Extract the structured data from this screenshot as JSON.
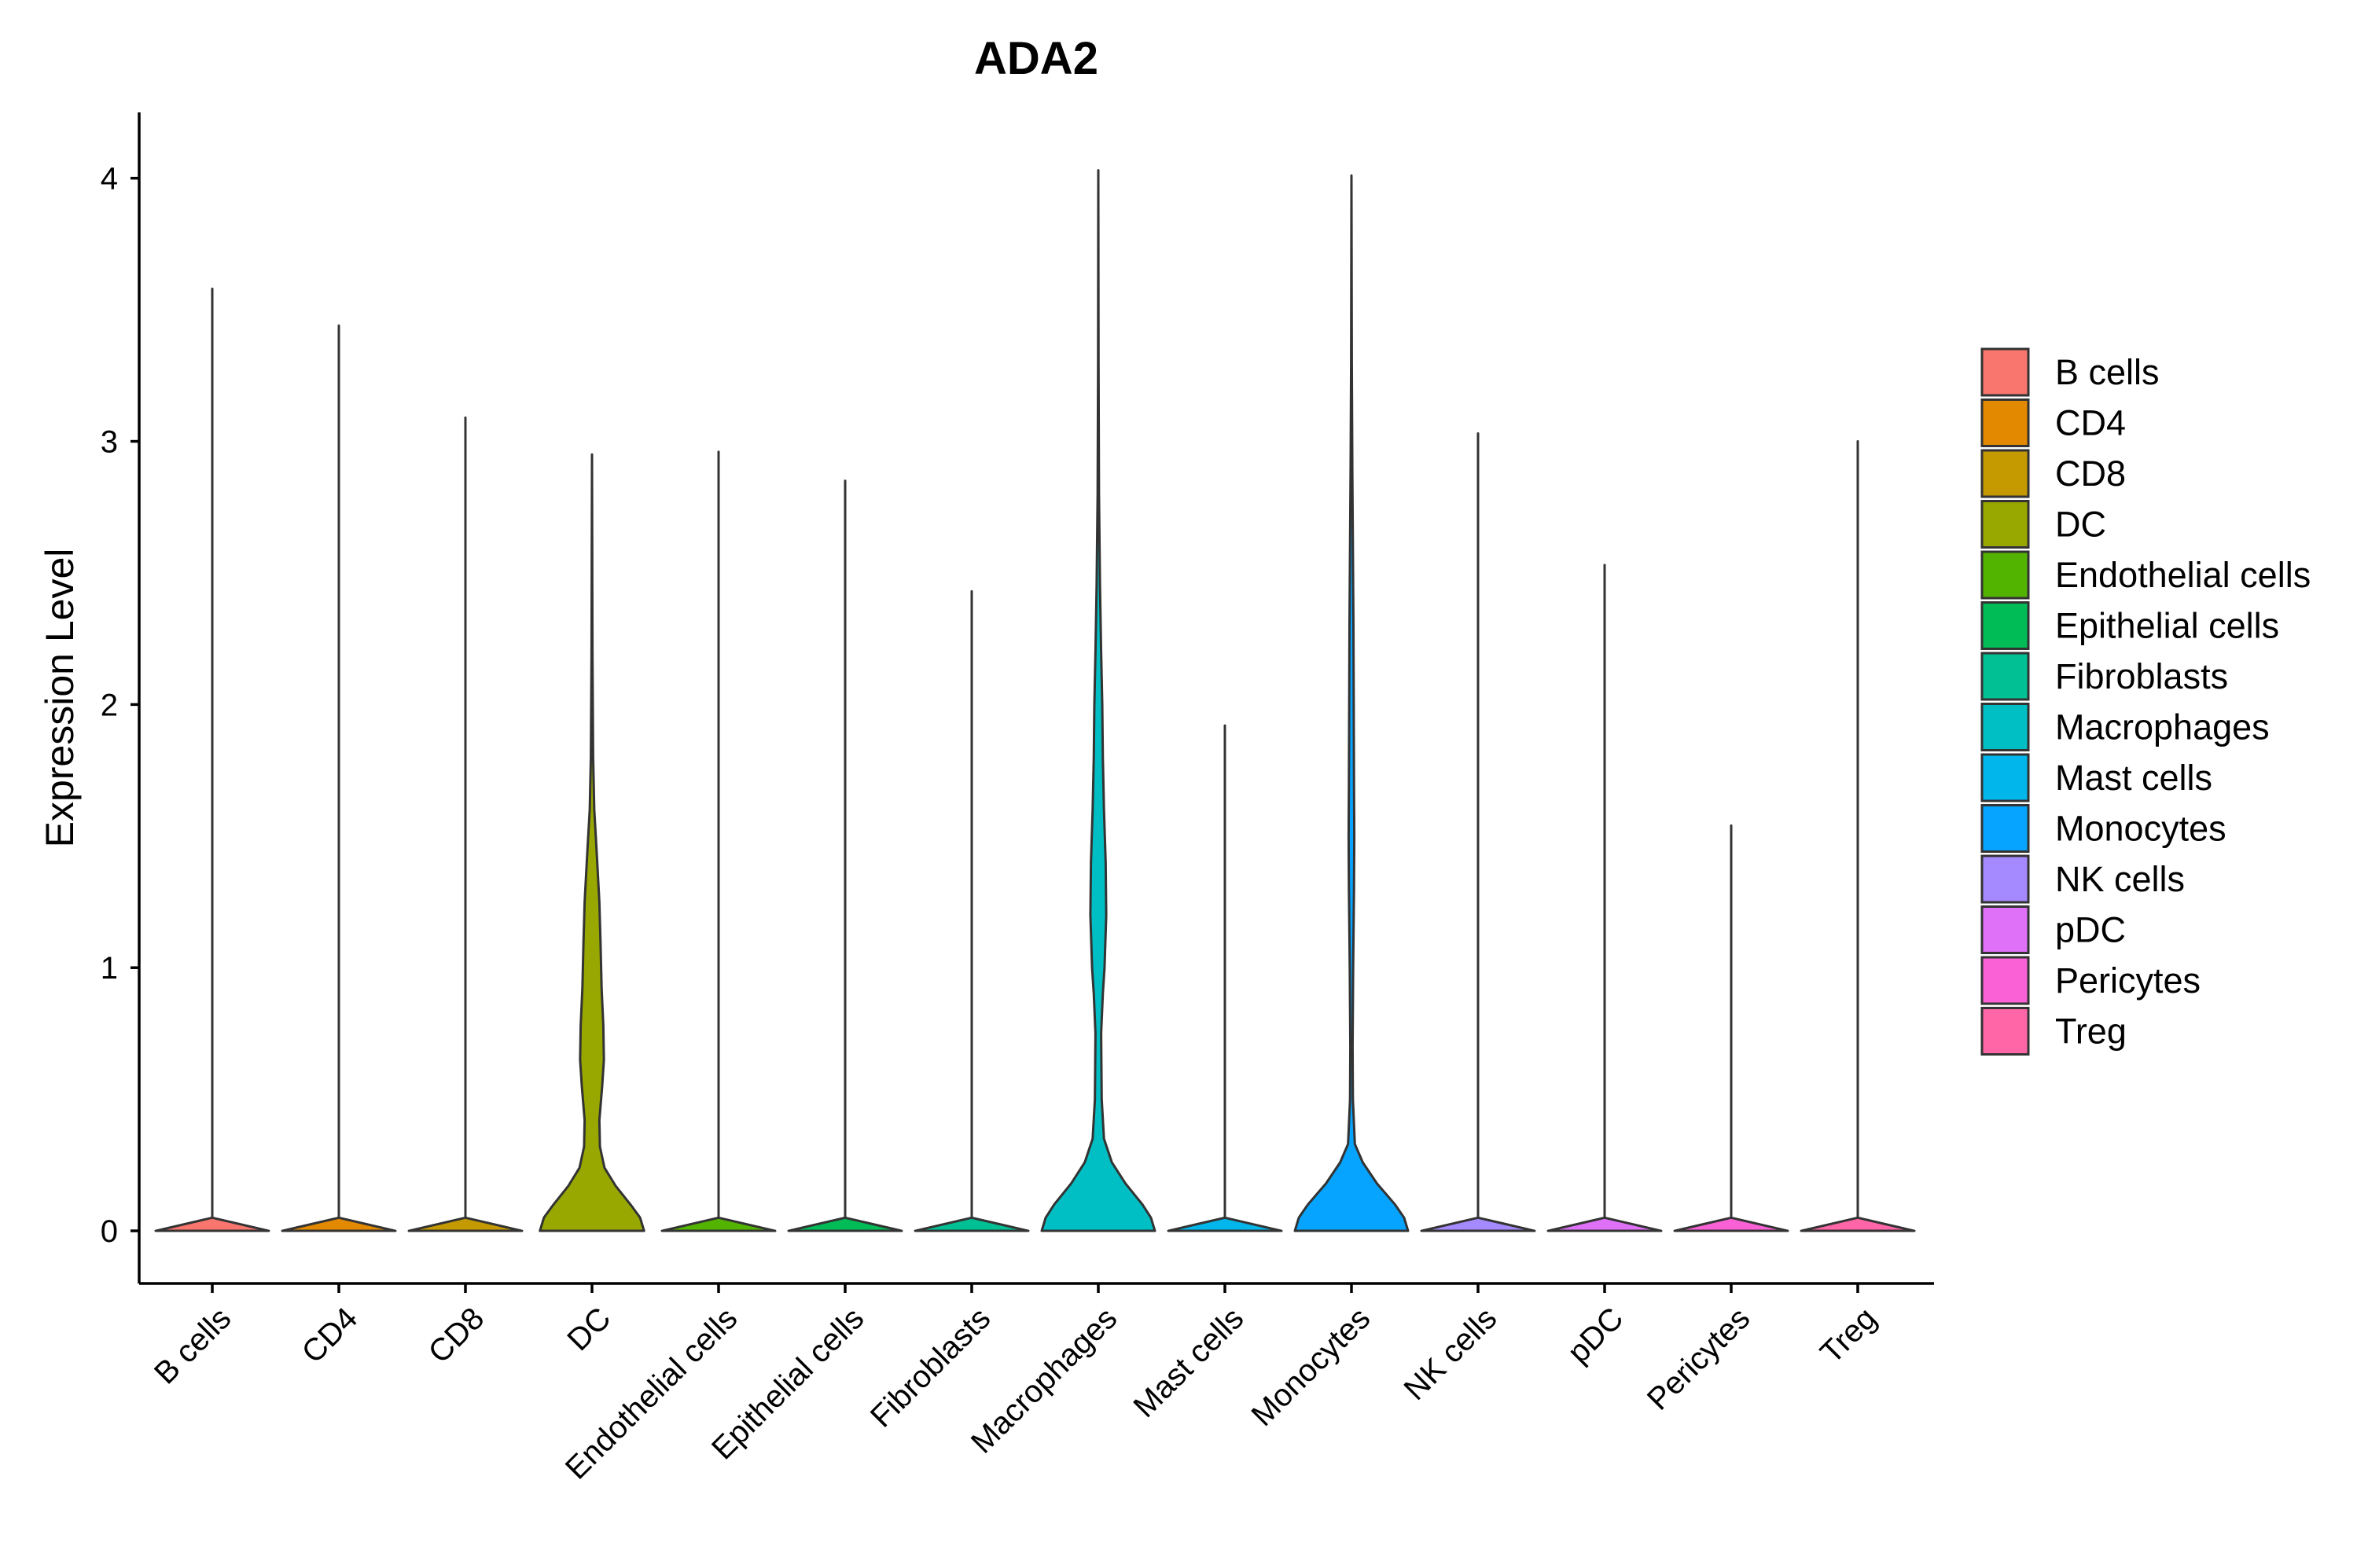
{
  "chart_data": {
    "type": "violin",
    "title": "ADA2",
    "xlabel": "",
    "ylabel": "Expression Level",
    "ylim": [
      -0.2,
      4.25
    ],
    "yticks": [
      0,
      1,
      2,
      3,
      4
    ],
    "ytick_labels": [
      "0",
      "1",
      "2",
      "3",
      "4"
    ],
    "grid": false,
    "legend_position": "right",
    "categories": [
      "B cells",
      "CD4",
      "CD8",
      "DC",
      "Endothelial cells",
      "Epithelial cells",
      "Fibroblasts",
      "Macrophages",
      "Mast cells",
      "Monocytes",
      "NK cells",
      "pDC",
      "Pericytes",
      "Treg"
    ],
    "colors": [
      "#F8766D",
      "#E38900",
      "#C49A00",
      "#99A800",
      "#53B400",
      "#00BC56",
      "#00C094",
      "#00BFC4",
      "#00B6EB",
      "#06A4FF",
      "#A58AFF",
      "#DF70F8",
      "#FB61D7",
      "#FF66A8"
    ],
    "max_values": [
      3.58,
      3.44,
      3.09,
      2.95,
      2.96,
      2.85,
      2.43,
      4.03,
      1.92,
      4.01,
      3.03,
      2.53,
      1.54,
      3.0
    ],
    "density_profiles": [
      [
        [
          0,
          1
        ],
        [
          0.05,
          0
        ],
        [
          3.58,
          0
        ]
      ],
      [
        [
          0,
          1
        ],
        [
          0.05,
          0
        ],
        [
          3.44,
          0
        ]
      ],
      [
        [
          0,
          1
        ],
        [
          0.05,
          0
        ],
        [
          3.09,
          0
        ]
      ],
      [
        [
          0,
          0.92
        ],
        [
          0.05,
          0.85
        ],
        [
          0.1,
          0.68
        ],
        [
          0.17,
          0.42
        ],
        [
          0.24,
          0.22
        ],
        [
          0.32,
          0.14
        ],
        [
          0.42,
          0.13
        ],
        [
          0.55,
          0.18
        ],
        [
          0.65,
          0.21
        ],
        [
          0.78,
          0.2
        ],
        [
          0.92,
          0.17
        ],
        [
          1.1,
          0.15
        ],
        [
          1.25,
          0.13
        ],
        [
          1.45,
          0.08
        ],
        [
          1.6,
          0.04
        ],
        [
          1.8,
          0.02
        ],
        [
          2.2,
          0.008
        ],
        [
          2.95,
          0
        ]
      ],
      [
        [
          0,
          1
        ],
        [
          0.05,
          0
        ],
        [
          2.96,
          0
        ]
      ],
      [
        [
          0,
          1
        ],
        [
          0.05,
          0
        ],
        [
          2.85,
          0
        ]
      ],
      [
        [
          0,
          1
        ],
        [
          0.05,
          0
        ],
        [
          2.43,
          0
        ]
      ],
      [
        [
          0,
          1
        ],
        [
          0.05,
          0.93
        ],
        [
          0.1,
          0.78
        ],
        [
          0.18,
          0.48
        ],
        [
          0.26,
          0.24
        ],
        [
          0.35,
          0.1
        ],
        [
          0.5,
          0.06
        ],
        [
          0.75,
          0.05
        ],
        [
          0.9,
          0.08
        ],
        [
          1.0,
          0.11
        ],
        [
          1.2,
          0.14
        ],
        [
          1.4,
          0.13
        ],
        [
          1.6,
          0.1
        ],
        [
          1.8,
          0.08
        ],
        [
          2.0,
          0.07
        ],
        [
          2.2,
          0.05
        ],
        [
          2.45,
          0.03
        ],
        [
          2.8,
          0.012
        ],
        [
          3.3,
          0.004
        ],
        [
          4.03,
          0
        ]
      ],
      [
        [
          0,
          1
        ],
        [
          0.05,
          0
        ],
        [
          1.92,
          0
        ]
      ],
      [
        [
          0,
          1
        ],
        [
          0.05,
          0.93
        ],
        [
          0.1,
          0.77
        ],
        [
          0.18,
          0.45
        ],
        [
          0.26,
          0.2
        ],
        [
          0.33,
          0.06
        ],
        [
          0.5,
          0.025
        ],
        [
          0.7,
          0.02
        ],
        [
          1.0,
          0.03
        ],
        [
          1.3,
          0.045
        ],
        [
          1.5,
          0.05
        ],
        [
          1.7,
          0.045
        ],
        [
          2.0,
          0.04
        ],
        [
          2.3,
          0.035
        ],
        [
          2.6,
          0.025
        ],
        [
          2.9,
          0.015
        ],
        [
          3.3,
          0.006
        ],
        [
          4.01,
          0
        ]
      ],
      [
        [
          0,
          1
        ],
        [
          0.05,
          0
        ],
        [
          3.03,
          0
        ]
      ],
      [
        [
          0,
          1
        ],
        [
          0.05,
          0
        ],
        [
          2.53,
          0
        ]
      ],
      [
        [
          0,
          1
        ],
        [
          0.05,
          0
        ],
        [
          1.54,
          0
        ]
      ],
      [
        [
          0,
          1
        ],
        [
          0.05,
          0
        ],
        [
          3.0,
          0
        ]
      ]
    ]
  }
}
